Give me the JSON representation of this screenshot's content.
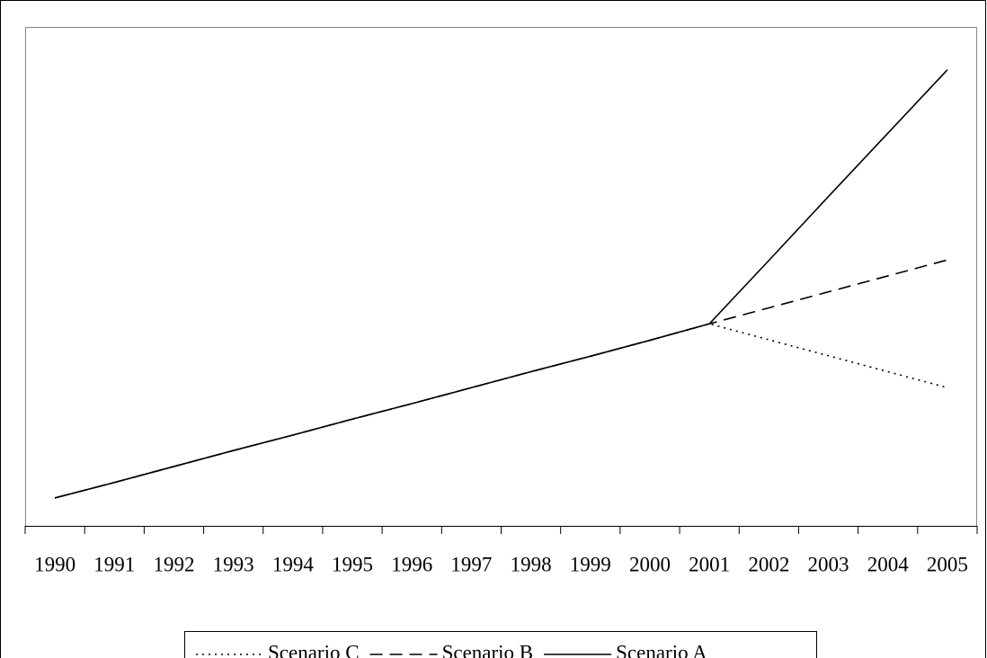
{
  "chart_data": {
    "type": "line",
    "categories": [
      "1990",
      "1991",
      "1992",
      "1993",
      "1994",
      "1995",
      "1996",
      "1997",
      "1998",
      "1999",
      "2000",
      "2001",
      "2002",
      "2003",
      "2004",
      "2005"
    ],
    "series": [
      {
        "name": "Scenario C",
        "color": "#000000",
        "dash": "dotted",
        "values": [
          5.6,
          8.7,
          11.9,
          15.1,
          18.2,
          21.4,
          24.5,
          27.7,
          30.9,
          34.0,
          37.2,
          40.5,
          37.3,
          34.1,
          30.9,
          27.7
        ]
      },
      {
        "name": "Scenario B",
        "color": "#000000",
        "dash": "dashed",
        "values": [
          5.6,
          8.7,
          11.9,
          15.1,
          18.2,
          21.4,
          24.5,
          27.7,
          30.9,
          34.0,
          37.2,
          40.5,
          43.7,
          46.9,
          50.1,
          53.3
        ]
      },
      {
        "name": "Scenario A",
        "color": "#000000",
        "dash": "solid",
        "values": [
          5.6,
          8.7,
          11.9,
          15.1,
          18.2,
          21.4,
          24.5,
          27.7,
          30.9,
          34.0,
          37.2,
          40.5,
          53.2,
          66.0,
          78.7,
          91.4
        ]
      }
    ],
    "ylim": [
      0,
      100
    ]
  }
}
